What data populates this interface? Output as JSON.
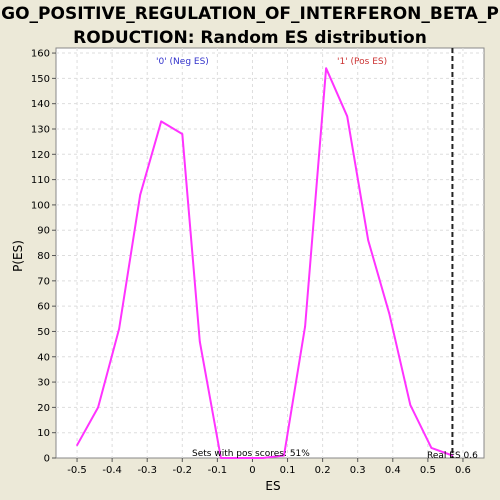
{
  "title_line1": "GO_POSITIVE_REGULATION_OF_INTERFERON_BETA_P",
  "title_line2": "RODUCTION: Random ES distribution",
  "chart_data": {
    "type": "line",
    "xlabel": "ES",
    "ylabel": "P(ES)",
    "xlim": [
      -0.56,
      0.66
    ],
    "ylim": [
      0,
      162
    ],
    "x_ticks": [
      -0.5,
      -0.4,
      -0.3,
      -0.2,
      -0.1,
      0.0,
      0.1,
      0.2,
      0.3,
      0.4,
      0.5,
      0.6
    ],
    "y_ticks": [
      0,
      10,
      20,
      30,
      40,
      50,
      60,
      70,
      80,
      90,
      100,
      110,
      120,
      130,
      140,
      150,
      160
    ],
    "grid": true,
    "series": [
      {
        "color": "#FF33FF",
        "x": [
          -0.5,
          -0.44,
          -0.38,
          -0.32,
          -0.26,
          -0.2,
          -0.15,
          -0.09,
          -0.03,
          0.03,
          0.09,
          0.15,
          0.21,
          0.27,
          0.33,
          0.39,
          0.45,
          0.51,
          0.57
        ],
        "y": [
          5,
          20,
          51,
          104,
          133,
          128,
          46,
          0,
          0,
          0,
          1,
          52,
          154,
          135,
          86,
          57,
          21,
          4,
          1
        ]
      }
    ],
    "real_es": 0.57,
    "annotations": {
      "neg_label": "'0' (Neg ES)",
      "neg_color": "#3333CC",
      "pos_label": "'1' (Pos ES)",
      "pos_color": "#CC3333",
      "sets_text": "Sets with pos scores: 51%",
      "real_es_text": "Real ES 0.6"
    }
  }
}
